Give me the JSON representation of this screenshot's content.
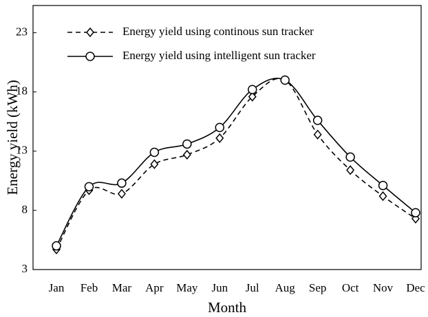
{
  "chart_data": {
    "type": "line",
    "x_label": "Month",
    "y_label": "Energy yield (kWh)",
    "categories": [
      "Jan",
      "Feb",
      "Mar",
      "Apr",
      "May",
      "Jun",
      "Jul",
      "Aug",
      "Sep",
      "Oct",
      "Nov",
      "Dec"
    ],
    "series": [
      {
        "name": "Energy yield using continous sun tracker",
        "color": "#000000",
        "dash": true,
        "marker": "diamond",
        "values": [
          4.7,
          9.7,
          9.4,
          11.9,
          12.7,
          14.1,
          17.6,
          19.0,
          14.4,
          11.4,
          9.2,
          7.3
        ]
      },
      {
        "name": "Energy yield using intelligent sun tracker",
        "color": "#000000",
        "dash": false,
        "marker": "circle",
        "values": [
          5.0,
          10.0,
          10.3,
          12.9,
          13.6,
          15.0,
          18.2,
          19.0,
          15.6,
          12.5,
          10.1,
          7.8
        ]
      }
    ],
    "ylim": [
      3,
      25.3
    ],
    "yticks": [
      3,
      8,
      13,
      18,
      23
    ],
    "grid": false,
    "legend": "upper left"
  }
}
